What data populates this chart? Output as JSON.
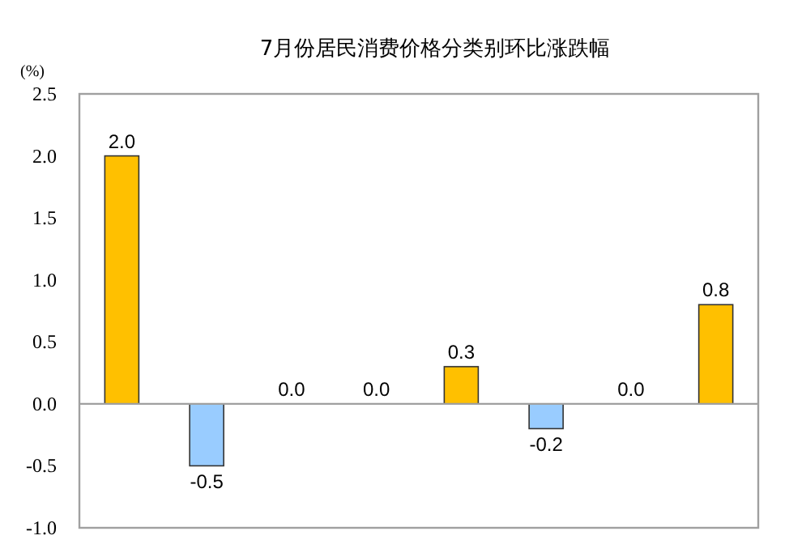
{
  "chart_data": {
    "type": "bar",
    "title": "7月份居民消费价格分类别环比涨跌幅",
    "ylabel": "(%)",
    "categories": [
      null,
      null,
      null,
      null,
      null,
      null,
      null,
      null
    ],
    "values": [
      2.0,
      -0.5,
      0.0,
      0.0,
      0.3,
      -0.2,
      0.0,
      0.8
    ],
    "colors": [
      "#ffc000",
      "#99ccff",
      "#ffc000",
      "#ffc000",
      "#ffc000",
      "#99ccff",
      "#ffc000",
      "#ffc000"
    ],
    "value_labels": [
      "2.0",
      "-0.5",
      "0.0",
      "0.0",
      "0.3",
      "-0.2",
      "0.0",
      "0.8"
    ],
    "ylim": [
      -1.0,
      2.5
    ],
    "yticks": [
      {
        "value": -1.0,
        "label": "-1.0"
      },
      {
        "value": -0.5,
        "label": "-0.5"
      },
      {
        "value": 0,
        "label": "0.0"
      },
      {
        "value": 0.5,
        "label": "0.5"
      },
      {
        "value": 1.0,
        "label": "1.0"
      },
      {
        "value": 1.5,
        "label": "1.5"
      },
      {
        "value": 2.0,
        "label": "2.0"
      },
      {
        "value": 2.5,
        "label": "2.5"
      }
    ]
  }
}
